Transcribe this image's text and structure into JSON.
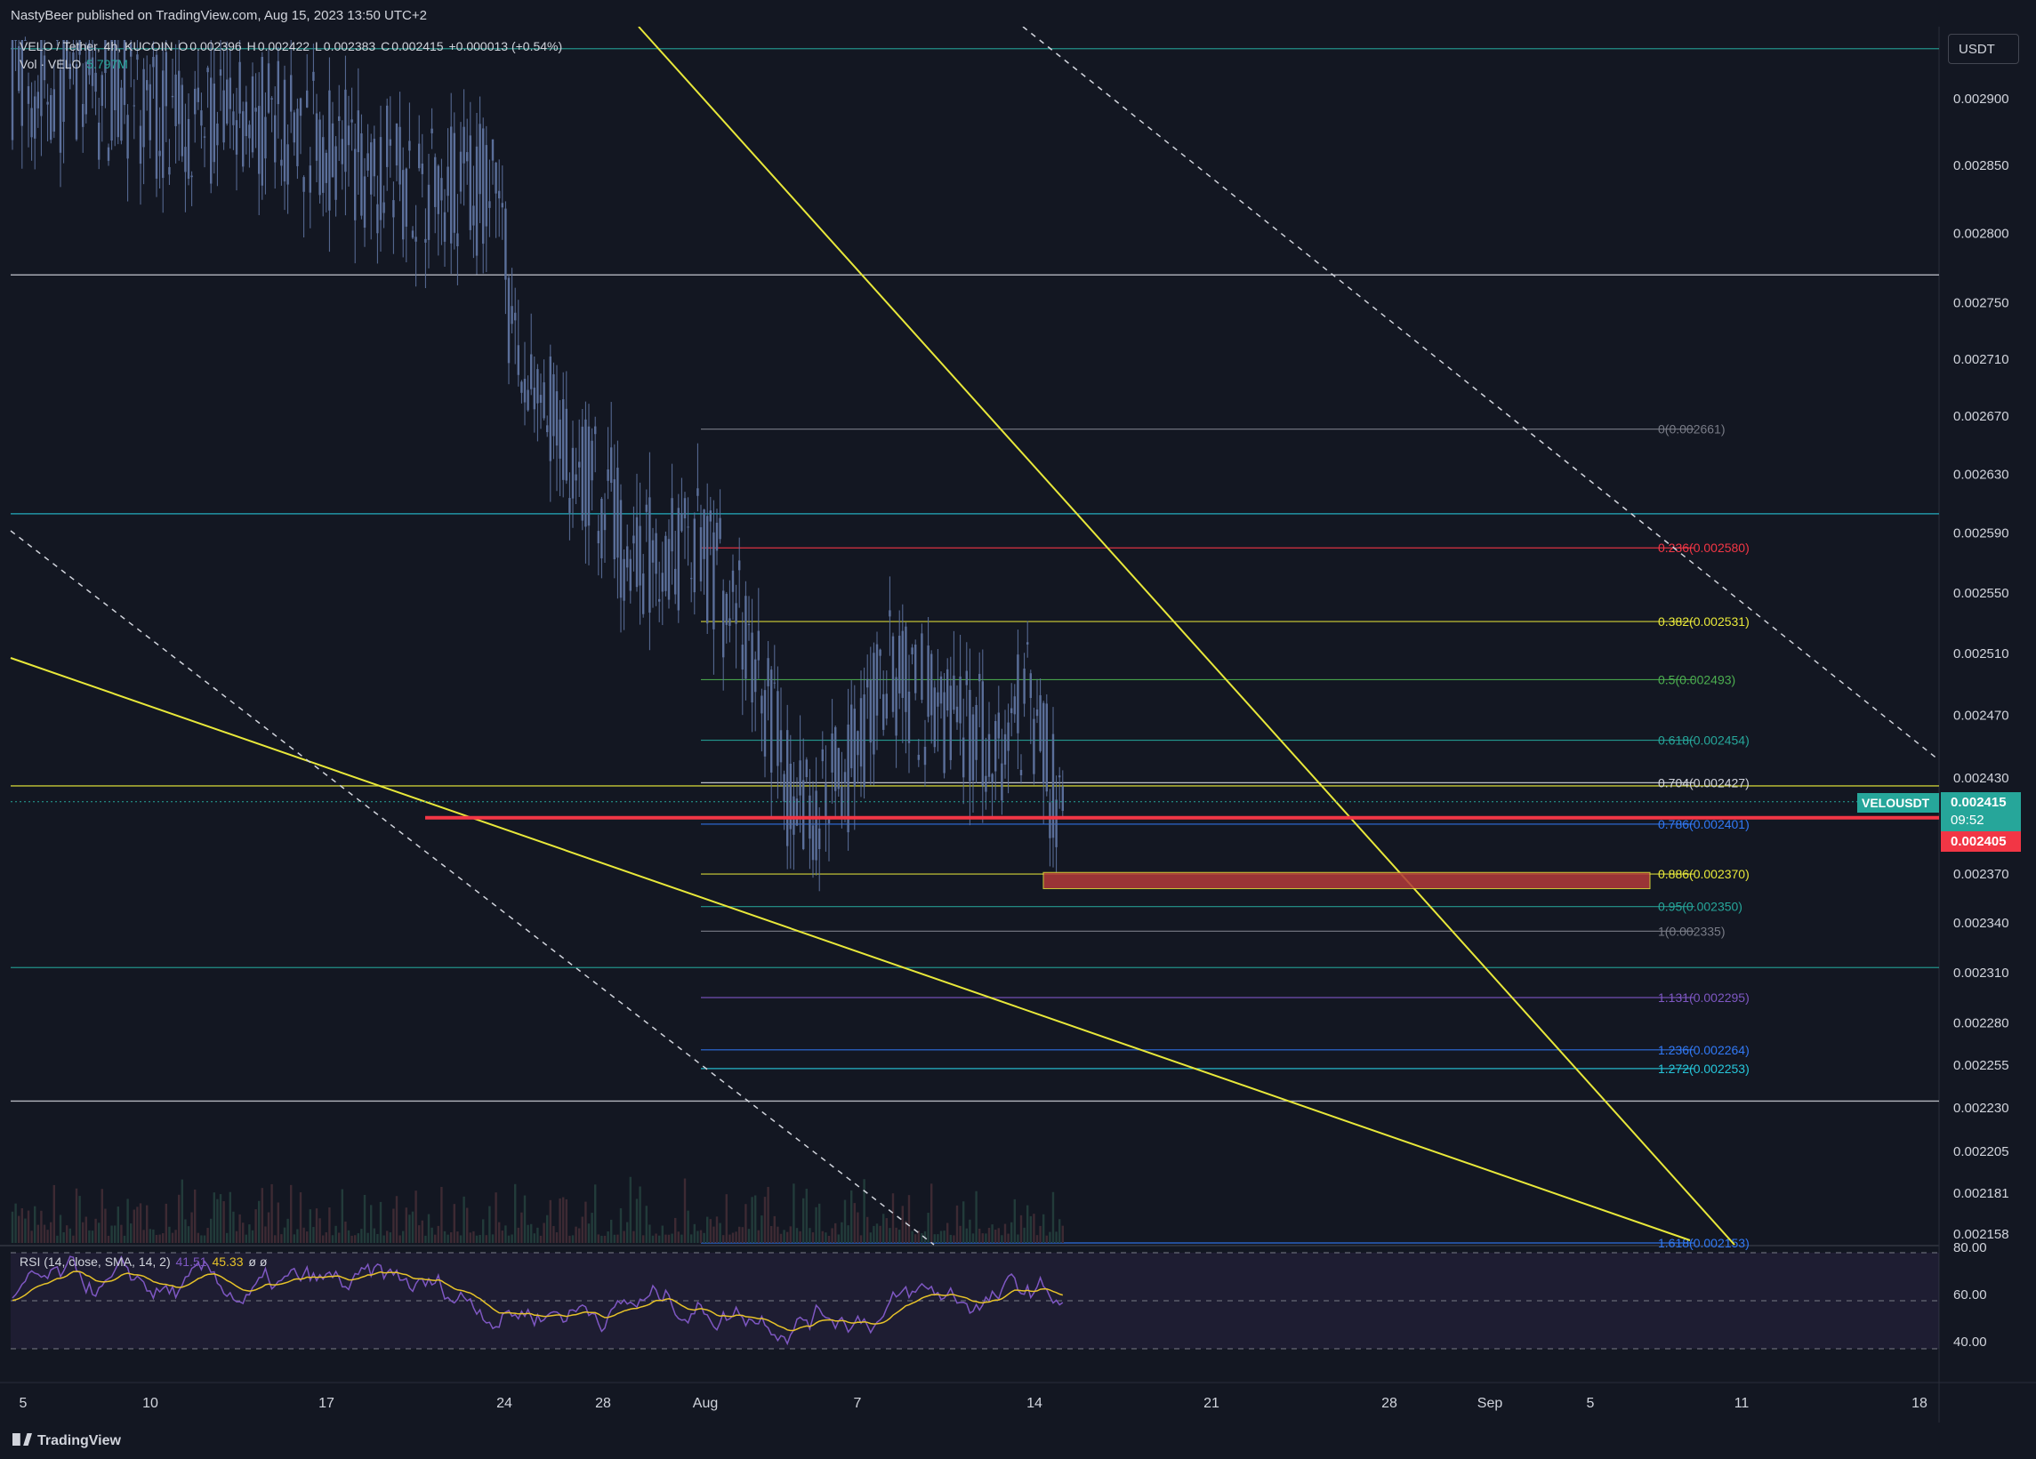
{
  "header": {
    "published": "NastyBeer published on TradingView.com, Aug 15, 2023 13:50 UTC+2"
  },
  "legend": {
    "symbol": "VELO / Tether, 4h, KUCOIN",
    "o_label": "O",
    "o_value": "0.002396",
    "h_label": "H",
    "h_value": "0.002422",
    "l_label": "L",
    "l_value": "0.002383",
    "c_label": "C",
    "c_value": "0.002415",
    "change": "+0.000013 (+0.54%)",
    "vol_label": "Vol · VELO",
    "vol_value": "5.797M"
  },
  "rsi_legend": {
    "label": "RSI (14, close, SMA, 14, 2)",
    "rsi_value": "41.51",
    "sma_value": "45.33",
    "extra": "ø  ø"
  },
  "currency_button": "USDT",
  "price_badges": {
    "symbol": "VELOUSDT",
    "last_price": "0.002415",
    "countdown": "09:52",
    "line_price": "0.002405"
  },
  "footer": {
    "logo": "TradingView"
  },
  "colors": {
    "background": "#131722",
    "candle": "#5b6f9a",
    "yellow": "#e8e83a",
    "red_line": "#f23645",
    "green_badge": "#26a69a",
    "rsi_line": "#7e57c2",
    "rsi_sma": "#e6c229"
  },
  "chart_data": {
    "type": "candlestick",
    "symbol": "VELOUSDT",
    "timeframe": "4h",
    "exchange": "KUCOIN",
    "price_axis": {
      "ticks": [
        "0.002900",
        "0.002850",
        "0.002800",
        "0.002750",
        "0.002710",
        "0.002670",
        "0.002630",
        "0.002590",
        "0.002550",
        "0.002510",
        "0.002470",
        "0.002430",
        "0.002370",
        "0.002340",
        "0.002310",
        "0.002280",
        "0.002255",
        "0.002230",
        "0.002205",
        "0.002181",
        "0.002158"
      ],
      "log_scale": true
    },
    "time_axis": {
      "ticks": [
        "5",
        "10",
        "17",
        "24",
        "28",
        "Aug",
        "7",
        "14",
        "21",
        "28",
        "Sep",
        "5",
        "11",
        "18"
      ]
    },
    "fibonacci": [
      {
        "level": "0",
        "price": 0.002661,
        "label": "0(0.002661)",
        "color": "#787b86"
      },
      {
        "level": "0.236",
        "price": 0.00258,
        "label": "0.236(0.002580)",
        "color": "#f23645"
      },
      {
        "level": "0.382",
        "price": 0.002531,
        "label": "0.382(0.002531)",
        "color": "#e8e83a"
      },
      {
        "level": "0.5",
        "price": 0.002493,
        "label": "0.5(0.002493)",
        "color": "#4caf50"
      },
      {
        "level": "0.618",
        "price": 0.002454,
        "label": "0.618(0.002454)",
        "color": "#26a69a"
      },
      {
        "level": "0.704",
        "price": 0.002427,
        "label": "0.704(0.002427)",
        "color": "#d1d4dc"
      },
      {
        "level": "0.786",
        "price": 0.002401,
        "label": "0.786(0.002401)",
        "color": "#3179f5"
      },
      {
        "level": "0.886",
        "price": 0.00237,
        "label": "0.886(0.002370)",
        "color": "#e8e83a"
      },
      {
        "level": "0.95",
        "price": 0.00235,
        "label": "0.95(0.002350)",
        "color": "#26a69a"
      },
      {
        "level": "1",
        "price": 0.002335,
        "label": "1(0.002335)",
        "color": "#787b86"
      },
      {
        "level": "1.131",
        "price": 0.002295,
        "label": "1.131(0.002295)",
        "color": "#7e57c2"
      },
      {
        "level": "1.236",
        "price": 0.002264,
        "label": "1.236(0.002264)",
        "color": "#3179f5"
      },
      {
        "level": "1.272",
        "price": 0.002253,
        "label": "1.272(0.002253)",
        "color": "#26c6da"
      },
      {
        "level": "1.618",
        "price": 0.002153,
        "label": "1.618(0.002153)",
        "color": "#3179f5"
      }
    ],
    "horizontal_lines": [
      {
        "price": 0.002938,
        "color": "#26a69a"
      },
      {
        "price": 0.00277,
        "color": "#d1d4dc"
      },
      {
        "price": 0.002603,
        "color": "#26c6da"
      },
      {
        "price": 0.002425,
        "color": "#e8e83a"
      },
      {
        "price": 0.002313,
        "color": "#26a69a"
      },
      {
        "price": 0.002234,
        "color": "#d1d4dc"
      }
    ],
    "key_level": {
      "price": 0.002405,
      "color": "#f23645"
    },
    "demand_zone": {
      "top": 0.002371,
      "bottom": 0.002361,
      "color": "#b23a3a"
    },
    "last_price": 0.002415,
    "rsi": {
      "period": 14,
      "value": 41.51,
      "sma": 45.33,
      "upper": 70,
      "lower": 30,
      "mid": 50,
      "ticks": [
        "80.00",
        "60.00",
        "40.00"
      ]
    }
  }
}
